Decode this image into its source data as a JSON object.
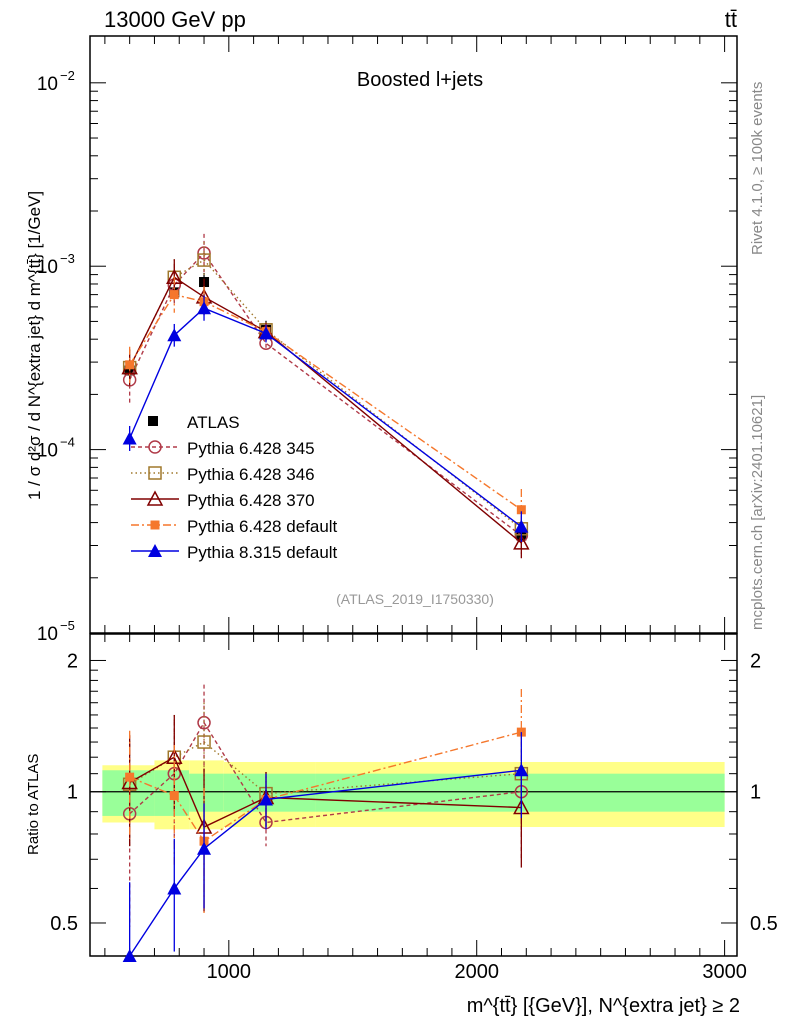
{
  "header": {
    "left": "13000 GeV pp",
    "right": "tt̄"
  },
  "chart_data": {
    "type": "scatter",
    "title": "Boosted l+jets",
    "analysis_id": "(ATLAS_2019_I1750330)",
    "side_labels": {
      "rivet": "Rivet 4.1.0, ≥ 100k events",
      "mcplots": "mcplots.cern.ch [arXiv:2401.10621]"
    },
    "ylabel_main": "1 / σ d²σ / d N^{extra jet} d m^{tt̄} [1/GeV]",
    "ylabel_ratio": "Ratio to ATLAS",
    "xlabel": "m^{tt̄} [{GeV}], N^{extra jet} ≥ 2",
    "xlim": [
      440,
      3050
    ],
    "ylim_main": [
      1e-05,
      0.018
    ],
    "ylim_ratio": [
      0.42,
      2.3
    ],
    "x_ticks": [
      {
        "v": 1000,
        "label": "1000"
      },
      {
        "v": 2000,
        "label": "2000"
      },
      {
        "v": 3000,
        "label": "3000"
      }
    ],
    "y_ticks_main": [
      {
        "v": 1e-05,
        "base": "10",
        "exp": "−5"
      },
      {
        "v": 0.0001,
        "base": "10",
        "exp": "−4"
      },
      {
        "v": 0.001,
        "base": "10",
        "exp": "−3"
      },
      {
        "v": 0.01,
        "base": "10",
        "exp": "−2"
      }
    ],
    "y_ticks_ratio": [
      {
        "v": 0.5,
        "label": "0.5"
      },
      {
        "v": 1,
        "label": "1"
      },
      {
        "v": 2,
        "label": "2"
      }
    ],
    "bins": [
      {
        "lo": 490,
        "hi": 700
      },
      {
        "lo": 700,
        "hi": 840
      },
      {
        "lo": 840,
        "hi": 980
      },
      {
        "lo": 980,
        "hi": 1350
      },
      {
        "lo": 1350,
        "hi": 3000
      }
    ],
    "band_green": [
      0.12,
      0.12,
      0.1,
      0.1,
      0.1
    ],
    "band_yellow": [
      0.15,
      0.18,
      0.18,
      0.17,
      0.17
    ],
    "x": [
      600,
      780,
      900,
      1150,
      2180
    ],
    "data": {
      "name": "ATLAS",
      "values": [
        0.00027,
        0.00072,
        0.00082,
        0.00045,
        3.4e-05
      ]
    },
    "series": [
      {
        "name": "Pythia 6.428 345",
        "color": "#b03a48",
        "marker": "circle-open",
        "dash": "4,3",
        "values": [
          0.00024,
          0.00079,
          0.00118,
          0.00038,
          3.4e-05
        ],
        "ratio": [
          0.89,
          1.1,
          1.44,
          0.85,
          1.0
        ],
        "ratio_err": [
          0.4,
          0.35,
          0.32,
          0.1,
          0.3
        ]
      },
      {
        "name": "Pythia 6.428 346",
        "color": "#a0782c",
        "marker": "square-open",
        "dash": "1.5,3",
        "values": [
          0.00028,
          0.00087,
          0.00108,
          0.00045,
          3.7e-05
        ],
        "ratio": [
          1.04,
          1.2,
          1.3,
          0.99,
          1.1
        ],
        "ratio_err": [
          0.3,
          0.3,
          0.3,
          0.12,
          0.3
        ]
      },
      {
        "name": "Pythia 6.428 370",
        "color": "#800000",
        "marker": "triangle-open",
        "dash": "",
        "values": [
          0.00028,
          0.00087,
          0.00068,
          0.00044,
          3.1e-05
        ],
        "ratio": [
          1.05,
          1.2,
          0.83,
          0.97,
          0.92
        ],
        "ratio_err": [
          0.3,
          0.3,
          0.3,
          0.14,
          0.25
        ]
      },
      {
        "name": "Pythia 6.428 default",
        "color": "#f5772c",
        "marker": "square-filled",
        "dash": "8,3,2,3",
        "values": [
          0.00029,
          0.0007,
          0.00064,
          0.00044,
          4.7e-05
        ],
        "ratio": [
          1.08,
          0.98,
          0.77,
          0.96,
          1.37
        ],
        "ratio_err": [
          0.3,
          0.3,
          0.25,
          0.12,
          0.35
        ]
      },
      {
        "name": "Pythia 8.315 default",
        "color": "#0000e0",
        "marker": "triangle-filled",
        "dash": "",
        "values": [
          0.000115,
          0.00042,
          0.00059,
          0.00043,
          3.8e-05
        ],
        "ratio": [
          0.42,
          0.6,
          0.74,
          0.96,
          1.12
        ],
        "ratio_err": [
          0.2,
          0.18,
          0.2,
          0.14,
          0.25
        ]
      }
    ]
  }
}
